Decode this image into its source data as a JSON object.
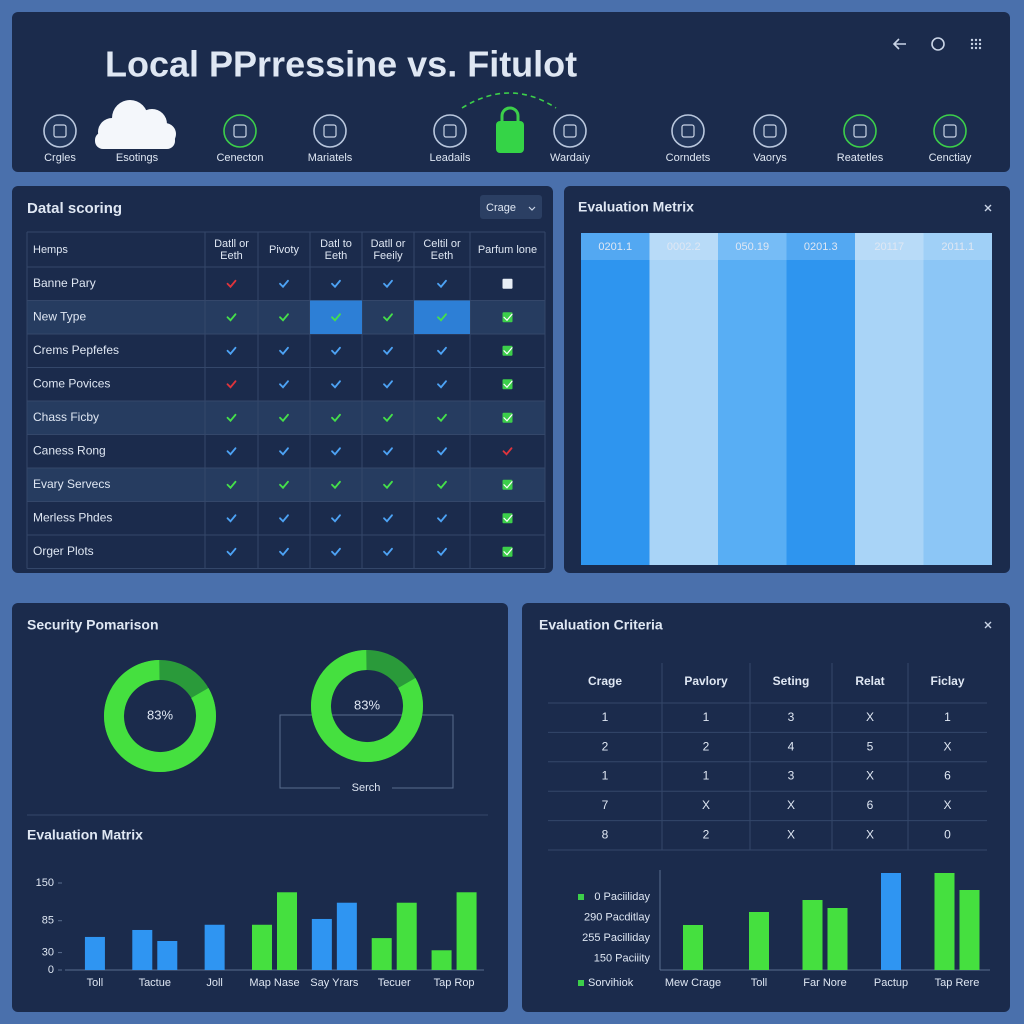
{
  "header": {
    "title": "Local PPrressine vs. Fitulot",
    "nav": [
      "Crgles",
      "Esotings",
      "Cenecton",
      "Mariatels",
      "Leadails",
      "Wardaiy",
      "Corndets",
      "Vaorys",
      "Reatetles",
      "Cenctiay"
    ]
  },
  "scoring": {
    "title": "Datal scoring",
    "dropdown": "Crage",
    "columns": [
      "Hemps",
      "Datll or Eeth",
      "Pivoty",
      "Datl to Eeth",
      "Datll or Feeily",
      "Celtil or Eeth",
      "Parfum lone"
    ],
    "rows": [
      {
        "name": "Banne Pary",
        "cells": [
          "red",
          "blue",
          "blue",
          "blue",
          "blue",
          "box-white"
        ]
      },
      {
        "name": "New Type",
        "cells": [
          "green",
          "green",
          "green-hl",
          "green",
          "green-hl",
          "box-green"
        ]
      },
      {
        "name": "Crems Pepfefes",
        "cells": [
          "blue",
          "blue",
          "blue",
          "blue",
          "blue",
          "box-green"
        ]
      },
      {
        "name": "Come Povices",
        "cells": [
          "red",
          "blue",
          "blue",
          "blue",
          "blue",
          "box-green"
        ]
      },
      {
        "name": "Chass Ficby",
        "cells": [
          "green",
          "green",
          "green",
          "green",
          "green",
          "box-green"
        ]
      },
      {
        "name": "Caness Rong",
        "cells": [
          "blue",
          "blue",
          "blue",
          "blue",
          "blue",
          "red"
        ]
      },
      {
        "name": "Evary Servecs",
        "cells": [
          "green",
          "green",
          "green",
          "green",
          "green",
          "box-green"
        ]
      },
      {
        "name": "Merless Phdes",
        "cells": [
          "blue",
          "blue",
          "blue",
          "blue",
          "blue",
          "box-green"
        ]
      },
      {
        "name": "Orger Plots",
        "cells": [
          "blue",
          "blue",
          "blue",
          "blue",
          "blue",
          "box-green"
        ]
      }
    ]
  },
  "metrix": {
    "title": "Evaluation Metrix",
    "columns": [
      {
        "label": "0201.1",
        "color": "#2e95ef"
      },
      {
        "label": "0002.2",
        "color": "#a9d4f7"
      },
      {
        "label": "050.19",
        "color": "#58aef4"
      },
      {
        "label": "0201.3",
        "color": "#2e95ef"
      },
      {
        "label": "20117",
        "color": "#a9d4f7"
      },
      {
        "label": "2011.1",
        "color": "#8cc6f6"
      }
    ]
  },
  "security": {
    "title": "Security Pomarison",
    "search": "Serch"
  },
  "criteria": {
    "title": "Evaluation Criteria",
    "columns": [
      "Crage",
      "Pavlory",
      "Seting",
      "Relat",
      "Ficlay"
    ],
    "rows": [
      [
        1,
        1,
        3,
        "X",
        1
      ],
      [
        2,
        2,
        4,
        5,
        "X"
      ],
      [
        1,
        1,
        3,
        "X",
        6
      ],
      [
        7,
        "X",
        "X",
        6,
        "X"
      ],
      [
        8,
        2,
        "X",
        "X",
        0
      ]
    ]
  },
  "chart_data": [
    {
      "type": "donut",
      "values": [
        83,
        83
      ],
      "value_labels": [
        "83%",
        "83%"
      ],
      "color": "#45e03f",
      "track_color": "#2a9a3a"
    },
    {
      "type": "bar",
      "title": "Evaluation Matrix",
      "categories": [
        "Toll",
        "Tactue",
        "Joll",
        "Map Nase",
        "Say Yrars",
        "Tecuer",
        "Tap Rop"
      ],
      "series": [
        {
          "color": "#2f95f2",
          "values": [
            57,
            69,
            78,
            null,
            88,
            null,
            null
          ]
        },
        {
          "color": "#2f95f2",
          "values": [
            null,
            50,
            null,
            null,
            116,
            null,
            null
          ]
        },
        {
          "color": "#45e03f",
          "values": [
            null,
            null,
            null,
            78,
            null,
            55,
            34
          ]
        },
        {
          "color": "#45e03f",
          "values": [
            null,
            null,
            null,
            134,
            null,
            116,
            134
          ]
        }
      ],
      "ylim": [
        0,
        150
      ],
      "yticks": [
        0,
        30,
        85,
        150
      ]
    },
    {
      "type": "bar",
      "labels": [
        "0 Paciiliday",
        "290 Pacditlay",
        "255 Pacilliday",
        "150 Paciiity"
      ],
      "legend": "Sorvihiok",
      "categories": [
        "Mew Crage",
        "Toll",
        "Far Nore",
        "Pactup",
        "Tap Rere"
      ],
      "series": [
        {
          "color": "#45e03f",
          "values": [
            45,
            58,
            70,
            null,
            97
          ]
        },
        {
          "color": "#45e03f",
          "values": [
            null,
            null,
            62,
            null,
            80
          ]
        },
        {
          "color": "#2f95f2",
          "values": [
            null,
            null,
            null,
            97,
            null
          ]
        }
      ],
      "ylim": [
        0,
        100
      ]
    }
  ]
}
